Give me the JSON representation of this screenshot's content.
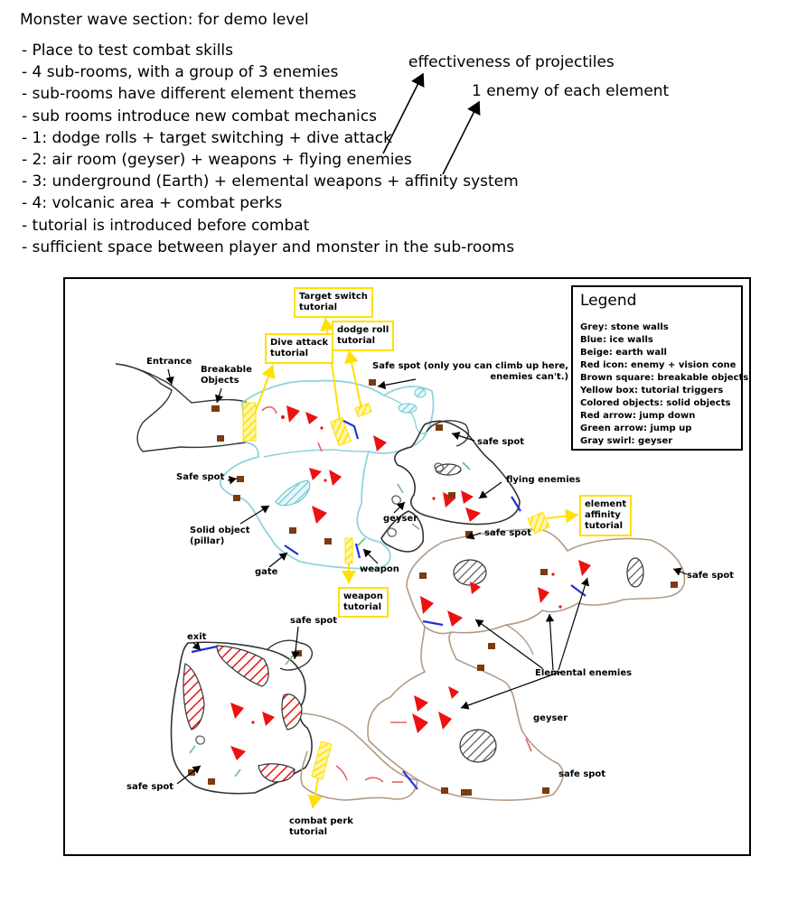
{
  "title": "Monster wave section: for demo level",
  "notes": [
    "- Place to test combat skills",
    "- 4 sub-rooms, with a group of 3 enemies",
    "- sub-rooms have different element themes",
    "- sub rooms introduce new combat mechanics",
    "- 1: dodge rolls + target switching + dive attack",
    "- 2: air room (geyser) + weapons + flying enemies",
    "- 3: underground (Earth) + elemental weapons + affinity system",
    "- 4: volcanic area + combat perks",
    "- tutorial is introduced before combat",
    "- sufficient space between player and monster in the sub-rooms"
  ],
  "side_notes": {
    "projectiles": "effectiveness of projectiles",
    "each_element": "1 enemy of each element"
  },
  "legend": {
    "title": "Legend",
    "items": [
      "Grey: stone walls",
      "Blue: ice walls",
      "Beige: earth wall",
      "Red icon: enemy + vision cone",
      "Brown square: breakable objects",
      "Yellow box: tutorial triggers",
      "Colored objects: solid objects",
      "Red arrow: jump down",
      "Green arrow: jump up",
      "Gray swirl: geyser"
    ]
  },
  "map_labels": {
    "entrance": "Entrance",
    "breakable": "Breakable\nObjects",
    "safe_spot_climb": "Safe spot (only you can climb up here,\nenemies can't.)",
    "safe_spot": "safe spot",
    "safe_spot_cap": "Safe spot",
    "flying_enemies": "flying enemies",
    "geyser": "geyser",
    "solid_object": "Solid object\n(pillar)",
    "gate": "gate",
    "weapon": "weapon",
    "elemental_enemies": "Elemental enemies",
    "exit": "exit"
  },
  "tutorials": {
    "target_switch": "Target switch\ntutorial",
    "dodge_roll": "dodge roll\ntutorial",
    "dive_attack": "Dive attack\ntutorial",
    "element_affinity": "element\naffinity\ntutorial",
    "weapon": "weapon\ntutorial",
    "combat_perk": "combat perk\ntutorial"
  },
  "colors": {
    "stone_wall": "#333333",
    "ice_wall": "#8fd3dc",
    "earth_wall": "#b29a86",
    "enemy": "#ee1111",
    "breakable": "#7b3a10",
    "tutorial": "#ffe000",
    "gate": "#1f33d8",
    "jump_down": "#e86060",
    "jump_up": "#6dbb7f"
  }
}
